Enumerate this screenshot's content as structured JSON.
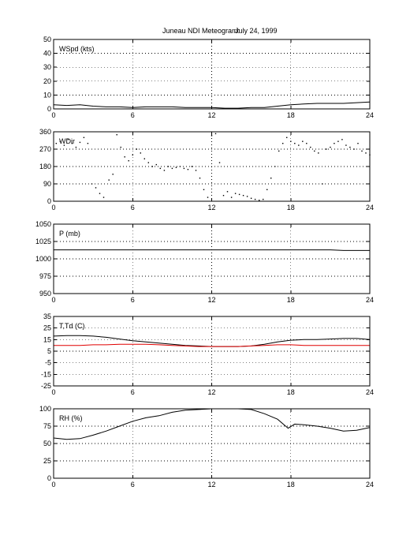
{
  "title": {
    "station": "Juneau NDI Meteogram:",
    "date": "July 24, 1999"
  },
  "chart_data": [
    {
      "type": "line",
      "label": "WSpd (kts)",
      "ylim": [
        0,
        50
      ],
      "yticks": [
        0,
        10,
        20,
        30,
        40,
        50
      ],
      "xlim": [
        0,
        24
      ],
      "xticks": [
        0,
        6,
        12,
        18,
        24
      ],
      "grid": true,
      "series": [
        {
          "color": "#000000",
          "points": [
            [
              0,
              3
            ],
            [
              1,
              2.5
            ],
            [
              2,
              3
            ],
            [
              3,
              2
            ],
            [
              4,
              1.5
            ],
            [
              5,
              1.5
            ],
            [
              6,
              1
            ],
            [
              7,
              1.5
            ],
            [
              8,
              1.5
            ],
            [
              9,
              1.5
            ],
            [
              10,
              1
            ],
            [
              11,
              1
            ],
            [
              12,
              1
            ],
            [
              13,
              0.5
            ],
            [
              14,
              0.5
            ],
            [
              15,
              1
            ],
            [
              16,
              1
            ],
            [
              17,
              2
            ],
            [
              18,
              3
            ],
            [
              19,
              3.5
            ],
            [
              20,
              4
            ],
            [
              21,
              4
            ],
            [
              22,
              4
            ],
            [
              23,
              4.5
            ],
            [
              24,
              5
            ]
          ]
        }
      ]
    },
    {
      "type": "scatter",
      "label": "WDir",
      "ylim": [
        0,
        360
      ],
      "yticks": [
        0,
        90,
        180,
        270,
        360
      ],
      "xlim": [
        0,
        24
      ],
      "xticks": [
        0,
        6,
        12,
        18,
        24
      ],
      "grid": true,
      "series": [
        {
          "color": "#000000",
          "points": [
            [
              0.2,
              300
            ],
            [
              0.5,
              310
            ],
            [
              0.8,
              290
            ],
            [
              1.1,
              320
            ],
            [
              1.4,
              300
            ],
            [
              1.7,
              280
            ],
            [
              2.0,
              305
            ],
            [
              2.3,
              330
            ],
            [
              2.6,
              300
            ],
            [
              2.9,
              90
            ],
            [
              3.2,
              70
            ],
            [
              3.5,
              40
            ],
            [
              3.8,
              20
            ],
            [
              4.2,
              110
            ],
            [
              4.5,
              140
            ],
            [
              4.8,
              345
            ],
            [
              5.1,
              280
            ],
            [
              5.4,
              230
            ],
            [
              5.7,
              210
            ],
            [
              6.0,
              240
            ],
            [
              6.3,
              270
            ],
            [
              6.6,
              250
            ],
            [
              6.9,
              220
            ],
            [
              7.2,
              200
            ],
            [
              7.5,
              180
            ],
            [
              7.8,
              190
            ],
            [
              8.1,
              170
            ],
            [
              8.4,
              160
            ],
            [
              8.7,
              180
            ],
            [
              9.0,
              170
            ],
            [
              9.3,
              175
            ],
            [
              9.6,
              180
            ],
            [
              9.9,
              170
            ],
            [
              10.2,
              165
            ],
            [
              10.5,
              180
            ],
            [
              10.8,
              160
            ],
            [
              11.1,
              120
            ],
            [
              11.4,
              60
            ],
            [
              11.7,
              20
            ],
            [
              12.0,
              340
            ],
            [
              12.3,
              350
            ],
            [
              12.6,
              200
            ],
            [
              12.9,
              30
            ],
            [
              13.2,
              50
            ],
            [
              13.5,
              20
            ],
            [
              13.8,
              40
            ],
            [
              14.1,
              35
            ],
            [
              14.4,
              30
            ],
            [
              14.7,
              25
            ],
            [
              15.0,
              15
            ],
            [
              15.3,
              10
            ],
            [
              15.6,
              5
            ],
            [
              15.9,
              10
            ],
            [
              16.2,
              60
            ],
            [
              16.5,
              120
            ],
            [
              16.8,
              180
            ],
            [
              17.1,
              260
            ],
            [
              17.4,
              300
            ],
            [
              17.7,
              330
            ],
            [
              18.0,
              310
            ],
            [
              18.3,
              300
            ],
            [
              18.6,
              290
            ],
            [
              18.9,
              310
            ],
            [
              19.2,
              300
            ],
            [
              19.5,
              280
            ],
            [
              19.8,
              260
            ],
            [
              20.1,
              250
            ],
            [
              20.4,
              90
            ],
            [
              20.7,
              270
            ],
            [
              21.0,
              280
            ],
            [
              21.3,
              300
            ],
            [
              21.6,
              310
            ],
            [
              21.9,
              320
            ],
            [
              22.2,
              290
            ],
            [
              22.5,
              280
            ],
            [
              22.8,
              270
            ],
            [
              23.1,
              300
            ],
            [
              23.4,
              260
            ],
            [
              23.7,
              250
            ],
            [
              24.0,
              240
            ]
          ]
        }
      ]
    },
    {
      "type": "line",
      "label": "P (mb)",
      "ylim": [
        950,
        1050
      ],
      "yticks": [
        950,
        975,
        1000,
        1025,
        1050
      ],
      "xlim": [
        0,
        24
      ],
      "xticks": [
        0,
        6,
        12,
        18,
        24
      ],
      "grid": true,
      "series": [
        {
          "color": "#000000",
          "points": [
            [
              0,
              1013
            ],
            [
              3,
              1013
            ],
            [
              6,
              1013
            ],
            [
              9,
              1013
            ],
            [
              12,
              1013
            ],
            [
              15,
              1013
            ],
            [
              18,
              1013
            ],
            [
              21,
              1013
            ],
            [
              22,
              1012
            ],
            [
              24,
              1012
            ]
          ]
        }
      ]
    },
    {
      "type": "line",
      "label": "T,Td (C)",
      "ylim": [
        -25,
        35
      ],
      "yticks": [
        -25,
        -15,
        -5,
        5,
        15,
        25,
        35
      ],
      "xlim": [
        0,
        24
      ],
      "xticks": [
        0,
        6,
        12,
        18,
        24
      ],
      "grid": true,
      "series": [
        {
          "color": "#000000",
          "points": [
            [
              0,
              18
            ],
            [
              1,
              18.5
            ],
            [
              2,
              18.5
            ],
            [
              3,
              18
            ],
            [
              4,
              17
            ],
            [
              5,
              15.5
            ],
            [
              6,
              14
            ],
            [
              7,
              13
            ],
            [
              8,
              12
            ],
            [
              9,
              11
            ],
            [
              10,
              10
            ],
            [
              11,
              9.5
            ],
            [
              12,
              9
            ],
            [
              13,
              9
            ],
            [
              14,
              9
            ],
            [
              15,
              9.5
            ],
            [
              16,
              11
            ],
            [
              17,
              13
            ],
            [
              18,
              14.5
            ],
            [
              19,
              15
            ],
            [
              20,
              15
            ],
            [
              21,
              15.5
            ],
            [
              22,
              16
            ],
            [
              23,
              16
            ],
            [
              24,
              15
            ]
          ]
        },
        {
          "color": "#e00000",
          "points": [
            [
              0,
              10
            ],
            [
              1,
              10
            ],
            [
              2,
              10
            ],
            [
              3,
              10.5
            ],
            [
              4,
              10.5
            ],
            [
              5,
              11
            ],
            [
              6,
              11
            ],
            [
              7,
              11
            ],
            [
              8,
              10.5
            ],
            [
              9,
              10
            ],
            [
              10,
              9.5
            ],
            [
              11,
              9
            ],
            [
              12,
              9
            ],
            [
              13,
              9
            ],
            [
              14,
              9
            ],
            [
              15,
              9.5
            ],
            [
              16,
              10
            ],
            [
              17,
              10.5
            ],
            [
              18,
              10.5
            ],
            [
              19,
              10
            ],
            [
              20,
              10
            ],
            [
              21,
              10
            ],
            [
              22,
              10
            ],
            [
              23,
              10
            ],
            [
              24,
              10
            ]
          ]
        }
      ]
    },
    {
      "type": "line",
      "label": "RH (%)",
      "ylim": [
        0,
        100
      ],
      "yticks": [
        0,
        25,
        50,
        75,
        100
      ],
      "xlim": [
        0,
        24
      ],
      "xticks": [
        0,
        6,
        12,
        18,
        24
      ],
      "grid": true,
      "series": [
        {
          "color": "#000000",
          "points": [
            [
              0,
              58
            ],
            [
              1,
              56
            ],
            [
              2,
              57
            ],
            [
              3,
              62
            ],
            [
              4,
              68
            ],
            [
              5,
              75
            ],
            [
              6,
              82
            ],
            [
              7,
              87
            ],
            [
              8,
              90
            ],
            [
              9,
              95
            ],
            [
              10,
              98
            ],
            [
              11,
              99
            ],
            [
              12,
              100
            ],
            [
              13,
              100
            ],
            [
              14,
              100
            ],
            [
              15,
              99
            ],
            [
              16,
              93
            ],
            [
              17,
              85
            ],
            [
              17.8,
              72
            ],
            [
              18.3,
              78
            ],
            [
              19,
              77
            ],
            [
              20,
              75
            ],
            [
              21,
              72
            ],
            [
              22,
              68
            ],
            [
              23,
              69
            ],
            [
              24,
              73
            ]
          ]
        }
      ]
    }
  ]
}
